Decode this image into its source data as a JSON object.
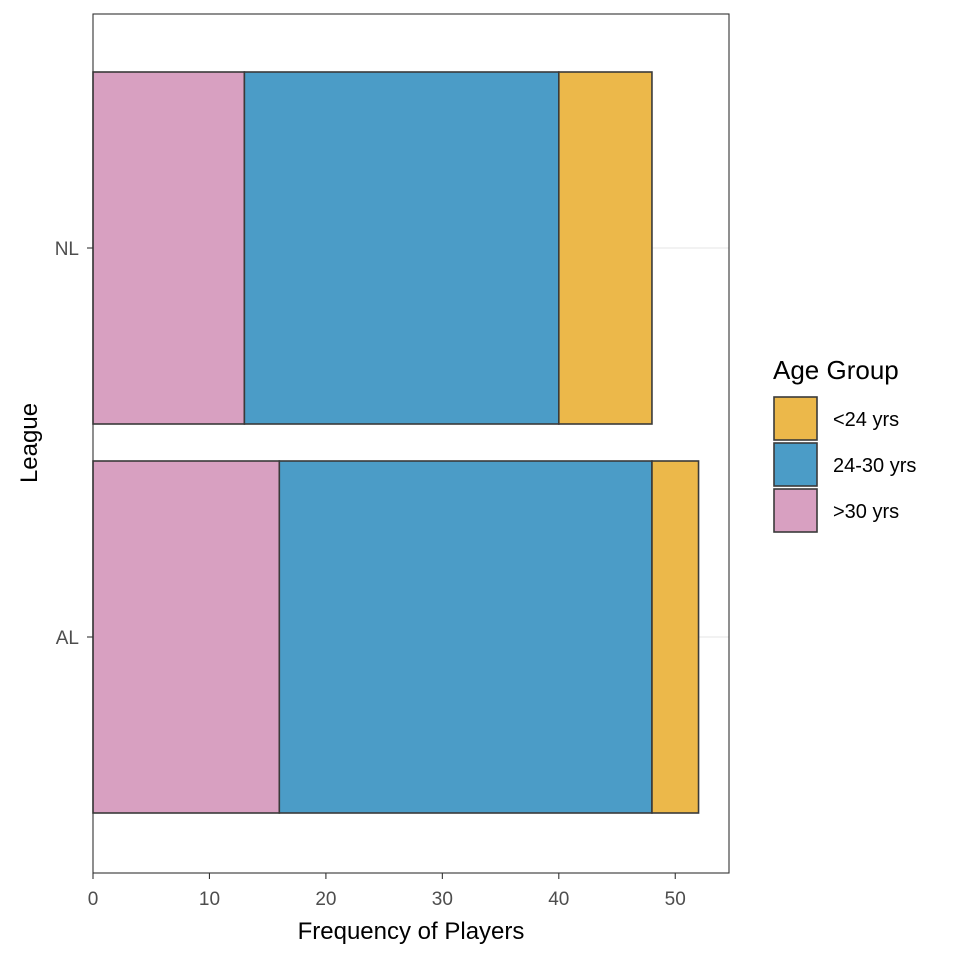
{
  "chart_data": {
    "type": "bar",
    "orientation": "horizontal",
    "stacked": true,
    "title": "",
    "xlabel": "Frequency of Players",
    "ylabel": "League",
    "categories": [
      "AL",
      "NL"
    ],
    "xlim": [
      0,
      54.6
    ],
    "x_ticks": [
      "0",
      "10",
      "20",
      "30",
      "40",
      "50"
    ],
    "x_tick_values": [
      0,
      10,
      20,
      30,
      40,
      50
    ],
    "grid": "major horizontal only",
    "stack_order": [
      "<24 yrs",
      "24-30 yrs",
      ">30 yrs"
    ],
    "series": [
      {
        "name": ">30 yrs",
        "color": "#D8A0C1",
        "values": [
          16,
          13
        ]
      },
      {
        "name": "24-30 yrs",
        "color": "#4B9CC7",
        "values": [
          32,
          27
        ]
      },
      {
        "name": "<24 yrs",
        "color": "#ECB84A",
        "values": [
          4,
          8
        ]
      }
    ],
    "legend": {
      "title": "Age Group",
      "position": "right",
      "items": [
        "<24 yrs",
        "24-30 yrs",
        ">30 yrs"
      ]
    }
  }
}
